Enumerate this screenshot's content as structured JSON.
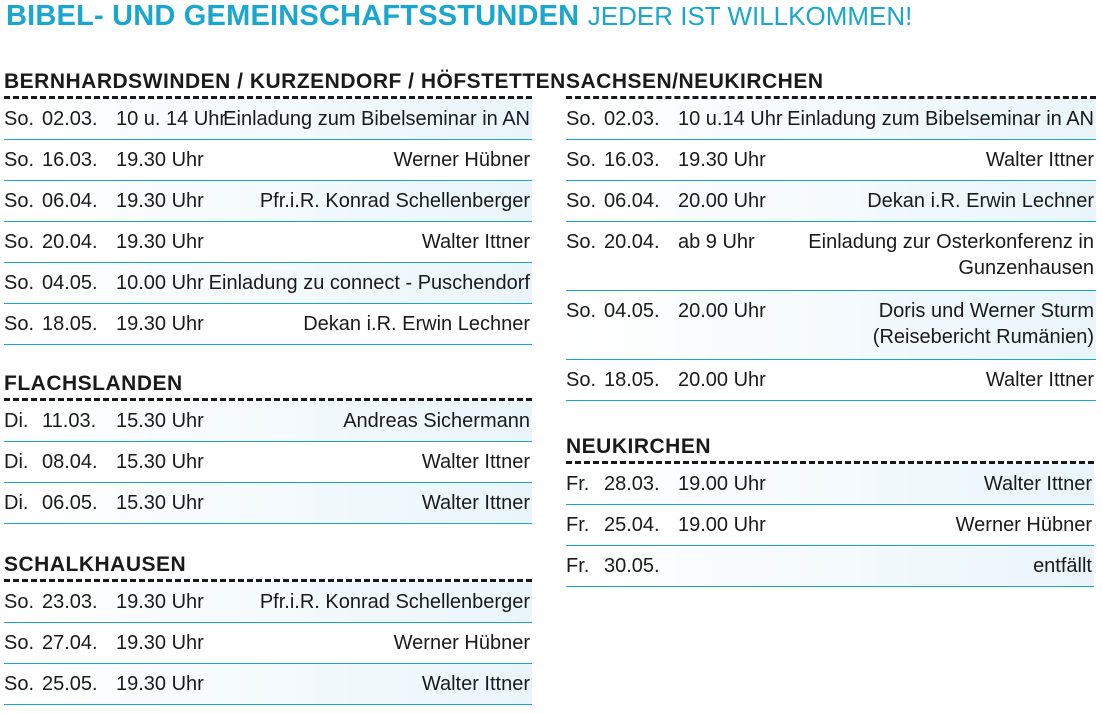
{
  "header": {
    "title_bold": "BIBEL- UND GEMEINSCHAFTSSTUNDEN",
    "title_rest": "JEDER IST WILLKOMMEN!"
  },
  "sections": {
    "bernhardswinden": {
      "title": "BERNHARDSWINDEN / KURZENDORF / HÖFSTETTEN",
      "rows": [
        {
          "day": "So.",
          "date": "02.03.",
          "time": "10 u. 14 Uhr",
          "what": "Einladung zum Bibelseminar in AN"
        },
        {
          "day": "So.",
          "date": "16.03.",
          "time": "19.30 Uhr",
          "what": "Werner Hübner"
        },
        {
          "day": "So.",
          "date": "06.04.",
          "time": "19.30 Uhr",
          "what": "Pfr.i.R. Konrad Schellenberger"
        },
        {
          "day": "So.",
          "date": "20.04.",
          "time": "19.30 Uhr",
          "what": "Walter Ittner"
        },
        {
          "day": "So.",
          "date": "04.05.",
          "time": "10.00 Uhr",
          "what": "Einladung zu connect - Puschendorf"
        },
        {
          "day": "So.",
          "date": "18.05.",
          "time": "19.30 Uhr",
          "what": "Dekan i.R. Erwin Lechner"
        }
      ]
    },
    "flachslanden": {
      "title": "FLACHSLANDEN",
      "rows": [
        {
          "day": "Di.",
          "date": "11.03.",
          "time": "15.30 Uhr",
          "what": "Andreas Sichermann"
        },
        {
          "day": "Di.",
          "date": "08.04.",
          "time": "15.30 Uhr",
          "what": "Walter Ittner"
        },
        {
          "day": "Di.",
          "date": "06.05.",
          "time": "15.30 Uhr",
          "what": "Walter Ittner"
        }
      ]
    },
    "schalkhausen": {
      "title": "SCHALKHAUSEN",
      "rows": [
        {
          "day": "So.",
          "date": "23.03.",
          "time": "19.30 Uhr",
          "what": "Pfr.i.R. Konrad Schellenberger"
        },
        {
          "day": "So.",
          "date": "27.04.",
          "time": "19.30 Uhr",
          "what": "Werner Hübner"
        },
        {
          "day": "So.",
          "date": "25.05.",
          "time": "19.30 Uhr",
          "what": "Walter Ittner"
        }
      ]
    },
    "sachsen": {
      "title": "SACHSEN/NEUKIRCHEN",
      "rows": [
        {
          "day": "So.",
          "date": "02.03.",
          "time": "10 u.14 Uhr",
          "what": "Einladung zum Bibelseminar in AN"
        },
        {
          "day": "So.",
          "date": "16.03.",
          "time": "19.30 Uhr",
          "what": "Walter Ittner"
        },
        {
          "day": "So.",
          "date": "06.04.",
          "time": "20.00 Uhr",
          "what": "Dekan i.R. Erwin Lechner"
        },
        {
          "day": "So.",
          "date": "20.04.",
          "time": "ab 9 Uhr",
          "what": "Einladung zur Osterkonferenz in",
          "what2": "Gunzenhausen"
        },
        {
          "day": "So.",
          "date": "04.05.",
          "time": "20.00 Uhr",
          "what": "Doris und Werner Sturm",
          "what2": "(Reisebericht Rumänien)"
        },
        {
          "day": "So.",
          "date": "18.05.",
          "time": "20.00 Uhr",
          "what": "Walter Ittner"
        }
      ]
    },
    "neukirchen": {
      "title": "NEUKIRCHEN",
      "rows": [
        {
          "day": "Fr.",
          "date": "28.03.",
          "time": "19.00 Uhr",
          "what": "Walter Ittner"
        },
        {
          "day": "Fr.",
          "date": "25.04.",
          "time": "19.00 Uhr",
          "what": "Werner Hübner"
        },
        {
          "day": "Fr.",
          "date": "30.05.",
          "time": "",
          "what": "entfällt"
        }
      ]
    }
  }
}
